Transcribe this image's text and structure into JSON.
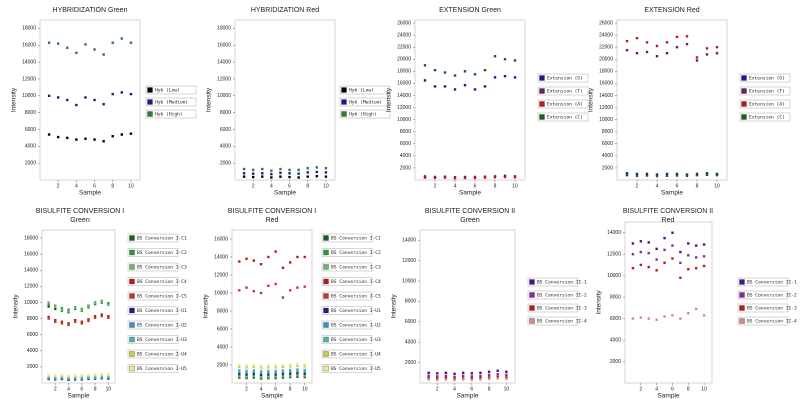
{
  "chart_data": [
    {
      "type": "scatter",
      "title": "HYBRIDIZATION Green",
      "x_label": "Sample",
      "y_label": "Intensity",
      "x": [
        1,
        2,
        3,
        4,
        5,
        6,
        7,
        8,
        9,
        10
      ],
      "xlim": [
        0,
        11
      ],
      "xticks": [
        2,
        4,
        6,
        8,
        10
      ],
      "ylim": [
        0,
        19000
      ],
      "yticks": [
        2000,
        4000,
        6000,
        8000,
        10000,
        12000,
        14000,
        16000,
        18000
      ],
      "legend": "right",
      "series": [
        {
          "name": "Hyb (Low)",
          "color": "#000000",
          "values": [
            5400,
            5100,
            5000,
            4800,
            4900,
            4800,
            4600,
            5200,
            5400,
            5500
          ]
        },
        {
          "name": "Hyb (Medium)",
          "color": "#1a1a8c",
          "values": [
            10000,
            9800,
            9500,
            8900,
            9800,
            9500,
            9000,
            10200,
            10400,
            10200
          ]
        },
        {
          "name": "Hyb (High)",
          "color": "#2e7d32",
          "values": [
            16300,
            16200,
            15700,
            15100,
            16100,
            15500,
            14900,
            16300,
            16800,
            16300
          ]
        }
      ]
    },
    {
      "type": "scatter",
      "title": "HYBRIDIZATION Red",
      "x_label": "Sample",
      "y_label": "Intensity",
      "x": [
        1,
        2,
        3,
        4,
        5,
        6,
        7,
        8,
        9,
        10
      ],
      "xlim": [
        0,
        11
      ],
      "xticks": [
        2,
        4,
        6,
        8,
        10
      ],
      "ylim": [
        0,
        19000
      ],
      "yticks": [
        2000,
        4000,
        6000,
        8000,
        10000,
        12000,
        14000,
        16000,
        18000
      ],
      "legend": "right",
      "series": [
        {
          "name": "Hyb (Low)",
          "color": "#000000",
          "values": [
            400,
            350,
            400,
            300,
            400,
            350,
            300,
            400,
            450,
            400
          ]
        },
        {
          "name": "Hyb (Medium)",
          "color": "#1a1a8c",
          "values": [
            800,
            750,
            800,
            700,
            850,
            800,
            750,
            900,
            950,
            900
          ]
        },
        {
          "name": "Hyb (High)",
          "color": "#2e7d32",
          "values": [
            1300,
            1200,
            1300,
            1100,
            1300,
            1200,
            1200,
            1400,
            1500,
            1400
          ]
        }
      ]
    },
    {
      "type": "scatter",
      "title": "EXTENSION Green",
      "x_label": "Sample",
      "y_label": "Intensity",
      "x": [
        1,
        2,
        3,
        4,
        5,
        6,
        7,
        8,
        9,
        10
      ],
      "xlim": [
        0,
        11
      ],
      "xticks": [
        2,
        4,
        6,
        8,
        10
      ],
      "ylim": [
        0,
        26500
      ],
      "yticks": [
        2000,
        4000,
        6000,
        8000,
        10000,
        12000,
        14000,
        16000,
        18000,
        20000,
        22000,
        24000,
        26000
      ],
      "legend": "right",
      "series": [
        {
          "name": "Extension (G)",
          "color": "#1a1a8c",
          "values": [
            16500,
            15500,
            15500,
            15000,
            15700,
            15000,
            15500,
            17000,
            17200,
            17000
          ]
        },
        {
          "name": "Extension (T)",
          "color": "#6a1b6a",
          "values": [
            600,
            500,
            550,
            450,
            500,
            500,
            550,
            600,
            700,
            600
          ]
        },
        {
          "name": "Extension (A)",
          "color": "#b71c1c",
          "values": [
            400,
            350,
            400,
            300,
            350,
            350,
            400,
            450,
            500,
            450
          ]
        },
        {
          "name": "Extension (C)",
          "color": "#1b5e20",
          "values": [
            19000,
            18200,
            17800,
            17300,
            18000,
            17500,
            18200,
            20500,
            20000,
            19800
          ]
        }
      ]
    },
    {
      "type": "scatter",
      "title": "EXTENSION Red",
      "x_label": "Sample",
      "y_label": "Intensity",
      "x": [
        1,
        2,
        3,
        4,
        5,
        6,
        7,
        8,
        9,
        10
      ],
      "xlim": [
        0,
        11
      ],
      "xticks": [
        2,
        4,
        6,
        8,
        10
      ],
      "ylim": [
        0,
        26500
      ],
      "yticks": [
        2000,
        4000,
        6000,
        8000,
        10000,
        12000,
        14000,
        16000,
        18000,
        20000,
        22000,
        24000,
        26000
      ],
      "legend": "right",
      "series": [
        {
          "name": "Extension (G)",
          "color": "#1a1a8c",
          "values": [
            1100,
            1000,
            1000,
            900,
            1000,
            1000,
            900,
            1000,
            1100,
            1000
          ]
        },
        {
          "name": "Extension (T)",
          "color": "#6a1b6a",
          "values": [
            21500,
            21000,
            21200,
            20500,
            21000,
            22000,
            22500,
            19800,
            20800,
            21000
          ]
        },
        {
          "name": "Extension (A)",
          "color": "#b71c1c",
          "values": [
            23000,
            23500,
            22800,
            22200,
            22800,
            23700,
            23800,
            20300,
            21800,
            22000
          ]
        },
        {
          "name": "Extension (C)",
          "color": "#1b5e20",
          "values": [
            800,
            700,
            750,
            650,
            700,
            750,
            700,
            800,
            850,
            800
          ]
        }
      ]
    },
    {
      "type": "scatter",
      "title": "BISULFITE CONVERSION I",
      "subtitle": "Green",
      "x_label": "Sample",
      "y_label": "Intensity",
      "x": [
        1,
        2,
        3,
        4,
        5,
        6,
        7,
        8,
        9,
        10
      ],
      "xlim": [
        0,
        11
      ],
      "xticks": [
        2,
        4,
        6,
        8,
        10
      ],
      "ylim": [
        0,
        19000
      ],
      "yticks": [
        2000,
        4000,
        6000,
        8000,
        10000,
        12000,
        14000,
        16000,
        18000
      ],
      "legend": "right",
      "series": [
        {
          "name": "BS Conversion I-C1",
          "color": "#1b5e20",
          "values": [
            9500,
            9200,
            9000,
            8800,
            9200,
            9000,
            9400,
            9800,
            10000,
            9800
          ]
        },
        {
          "name": "BS Conversion I-C2",
          "color": "#2e9a3a",
          "values": [
            9800,
            9600,
            9300,
            9100,
            9400,
            9200,
            9600,
            10000,
            10200,
            9900
          ]
        },
        {
          "name": "BS Conversion I-C3",
          "color": "#66bb6a",
          "values": [
            10000,
            9500,
            9100,
            8900,
            9300,
            9100,
            9500,
            9900,
            10100,
            9700
          ]
        },
        {
          "name": "BS Conversion I-C4",
          "color": "#b71c1c",
          "values": [
            8200,
            7800,
            7600,
            7400,
            7800,
            7600,
            7900,
            8300,
            8500,
            8300
          ]
        },
        {
          "name": "BS Conversion I-C5",
          "color": "#c0392b",
          "values": [
            8000,
            7600,
            7400,
            7200,
            7600,
            7400,
            7700,
            8100,
            8300,
            8100
          ]
        },
        {
          "name": "BS Conversion I-U1",
          "color": "#1a237e",
          "values": [
            500,
            450,
            500,
            400,
            450,
            450,
            500,
            550,
            600,
            550
          ]
        },
        {
          "name": "BS Conversion I-U2",
          "color": "#3f8fc9",
          "values": [
            600,
            550,
            600,
            500,
            550,
            550,
            600,
            650,
            700,
            650
          ]
        },
        {
          "name": "BS Conversion I-U3",
          "color": "#4db6ac",
          "values": [
            700,
            650,
            700,
            600,
            650,
            650,
            700,
            750,
            800,
            750
          ]
        },
        {
          "name": "BS Conversion I-U4",
          "color": "#c9c94a",
          "values": [
            900,
            850,
            900,
            800,
            850,
            850,
            900,
            950,
            1000,
            950
          ]
        },
        {
          "name": "BS Conversion I-U5",
          "color": "#f0e68c",
          "values": [
            1000,
            950,
            1000,
            900,
            950,
            950,
            1000,
            1050,
            1100,
            1050
          ]
        }
      ]
    },
    {
      "type": "scatter",
      "title": "BISULFITE CONVERSION I",
      "subtitle": "Red",
      "x_label": "Sample",
      "y_label": "Intensity",
      "x": [
        1,
        2,
        3,
        4,
        5,
        6,
        7,
        8,
        9,
        10
      ],
      "xlim": [
        0,
        11
      ],
      "xticks": [
        2,
        4,
        6,
        8,
        10
      ],
      "ylim": [
        0,
        17000
      ],
      "yticks": [
        2000,
        4000,
        6000,
        8000,
        10000,
        12000,
        14000,
        16000
      ],
      "legend": "right",
      "series": [
        {
          "name": "BS Conversion I-C1",
          "color": "#1b5e20",
          "values": [
            600,
            550,
            600,
            500,
            550,
            550,
            600,
            650,
            700,
            650
          ]
        },
        {
          "name": "BS Conversion I-C2",
          "color": "#2e9a3a",
          "values": [
            700,
            650,
            700,
            600,
            650,
            650,
            700,
            750,
            800,
            750
          ]
        },
        {
          "name": "BS Conversion I-C3",
          "color": "#66bb6a",
          "values": [
            800,
            750,
            800,
            700,
            750,
            750,
            800,
            850,
            900,
            850
          ]
        },
        {
          "name": "BS Conversion I-C4",
          "color": "#b71c1c",
          "values": [
            13500,
            13800,
            13600,
            13200,
            14000,
            14600,
            12800,
            13400,
            14000,
            14000
          ]
        },
        {
          "name": "BS Conversion I-C5",
          "color": "#c0392b",
          "values": [
            10300,
            10600,
            10200,
            10000,
            10800,
            11000,
            9500,
            10300,
            10600,
            10700
          ]
        },
        {
          "name": "BS Conversion I-U1",
          "color": "#1a237e",
          "values": [
            1000,
            950,
            1000,
            900,
            950,
            950,
            1000,
            1050,
            1100,
            1050
          ]
        },
        {
          "name": "BS Conversion I-U2",
          "color": "#3f8fc9",
          "values": [
            1200,
            1150,
            1200,
            1100,
            1150,
            1150,
            1200,
            1250,
            1300,
            1250
          ]
        },
        {
          "name": "BS Conversion I-U3",
          "color": "#4db6ac",
          "values": [
            1400,
            1350,
            1400,
            1300,
            1350,
            1350,
            1400,
            1450,
            1500,
            1450
          ]
        },
        {
          "name": "BS Conversion I-U4",
          "color": "#c9c94a",
          "values": [
            1800,
            1750,
            1800,
            1700,
            1750,
            1750,
            1800,
            1850,
            1900,
            1850
          ]
        },
        {
          "name": "BS Conversion I-U5",
          "color": "#f0e68c",
          "values": [
            2000,
            1950,
            2000,
            1900,
            1950,
            1950,
            2000,
            2050,
            2100,
            2050
          ]
        }
      ]
    },
    {
      "type": "scatter",
      "title": "BISULFITE CONVERSION II",
      "subtitle": "Green",
      "x_label": "Sample",
      "y_label": "Intensity",
      "x": [
        1,
        2,
        3,
        4,
        5,
        6,
        7,
        8,
        9,
        10
      ],
      "xlim": [
        0,
        11
      ],
      "xticks": [
        2,
        4,
        6,
        8,
        10
      ],
      "ylim": [
        0,
        15000
      ],
      "yticks": [
        2000,
        4000,
        6000,
        8000,
        10000,
        12000,
        14000
      ],
      "legend": "right",
      "series": [
        {
          "name": "BS Conversion II-1",
          "color": "#4a148c",
          "values": [
            1000,
            950,
            1000,
            900,
            1000,
            950,
            1000,
            1100,
            1200,
            1100
          ]
        },
        {
          "name": "BS Conversion II-2",
          "color": "#8e24aa",
          "values": [
            700,
            650,
            700,
            600,
            700,
            650,
            700,
            800,
            850,
            800
          ]
        },
        {
          "name": "BS Conversion II-3",
          "color": "#b71c1c",
          "values": [
            500,
            450,
            500,
            400,
            450,
            450,
            500,
            550,
            600,
            550
          ]
        },
        {
          "name": "BS Conversion II-4",
          "color": "#d98880",
          "values": [
            350,
            300,
            350,
            300,
            350,
            300,
            350,
            400,
            450,
            400
          ]
        }
      ]
    },
    {
      "type": "scatter",
      "title": "BISULFITE CONVERSION II",
      "subtitle": "Red",
      "x_label": "Sample",
      "y_label": "Intensity",
      "x": [
        1,
        2,
        3,
        4,
        5,
        6,
        7,
        8,
        9,
        10
      ],
      "xlim": [
        0,
        11
      ],
      "xticks": [
        2,
        4,
        6,
        8,
        10
      ],
      "ylim": [
        0,
        15000
      ],
      "yticks": [
        2000,
        4000,
        6000,
        8000,
        10000,
        12000,
        14000
      ],
      "legend": "right",
      "series": [
        {
          "name": "BS Conversion II-1",
          "color": "#4a148c",
          "values": [
            13000,
            13200,
            13100,
            12500,
            13500,
            14000,
            12200,
            13000,
            12800,
            12900
          ]
        },
        {
          "name": "BS Conversion II-2",
          "color": "#8e24aa",
          "values": [
            12000,
            12200,
            12100,
            11500,
            12400,
            12800,
            11200,
            11900,
            11700,
            11800
          ]
        },
        {
          "name": "BS Conversion II-3",
          "color": "#b71c1c",
          "values": [
            10700,
            11000,
            10800,
            10500,
            11200,
            11600,
            9800,
            10600,
            10700,
            10900
          ]
        },
        {
          "name": "BS Conversion II-4",
          "color": "#d98880",
          "values": [
            6000,
            6100,
            6000,
            5900,
            6200,
            6300,
            6000,
            6500,
            6900,
            6300
          ]
        }
      ]
    }
  ]
}
